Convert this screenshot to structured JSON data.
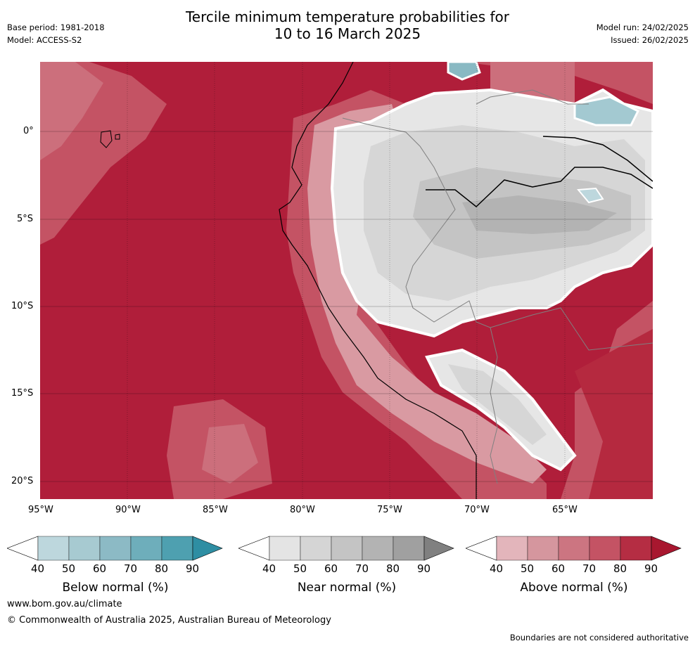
{
  "header": {
    "base_period": "Base period: 1981-2018",
    "model": "Model: ACCESS-S2",
    "model_run": "Model run: 24/02/2025",
    "issued": "Issued: 26/02/2025",
    "title_line1": "Tercile minimum temperature probabilities for",
    "title_line2": "10 to 16 March 2025"
  },
  "map": {
    "lat_labels": [
      "0°",
      "5°S",
      "10°S",
      "15°S",
      "20°S"
    ],
    "lon_labels": [
      "95°W",
      "90°W",
      "85°W",
      "80°W",
      "75°W",
      "70°W",
      "65°W"
    ],
    "colors": {
      "ocean_above_90": "#b01e3a",
      "above_80": "#b5293f",
      "above_70": "#c45364",
      "above_60": "#cc6f7c",
      "above_50": "#d99aa2",
      "above_40": "#e3b5bb",
      "near_40": "#e6e6e6",
      "near_50": "#d6d6d6",
      "near_60": "#c4c4c4",
      "near_70": "#b3b3b3",
      "below_40": "#bdd7dd",
      "below_50": "#a3c9d1",
      "below_60": "#89b9c3",
      "below_70": "#6eaebb"
    }
  },
  "colorbars": [
    {
      "label": "Below normal (%)",
      "ticks": [
        "40",
        "50",
        "60",
        "70",
        "80",
        "90"
      ],
      "colors": [
        "#bdd7dd",
        "#a7cad1",
        "#8cbac5",
        "#6eaebb",
        "#4ea0b0",
        "#2e8ea3"
      ]
    },
    {
      "label": "Near normal (%)",
      "ticks": [
        "40",
        "50",
        "60",
        "70",
        "80",
        "90"
      ],
      "colors": [
        "#e4e4e4",
        "#d5d5d5",
        "#c4c4c4",
        "#b3b3b3",
        "#a0a0a0",
        "#808080"
      ]
    },
    {
      "label": "Above normal (%)",
      "ticks": [
        "40",
        "50",
        "60",
        "70",
        "80",
        "90"
      ],
      "colors": [
        "#e3b5bb",
        "#d5969e",
        "#cc7581",
        "#c45364",
        "#b52d43",
        "#a8172f"
      ]
    }
  ],
  "footer": {
    "website": "www.bom.gov.au/climate",
    "copyright": "© Commonwealth of Australia 2025, Australian Bureau of Meteorology",
    "disclaimer": "Boundaries are not considered authoritative"
  }
}
